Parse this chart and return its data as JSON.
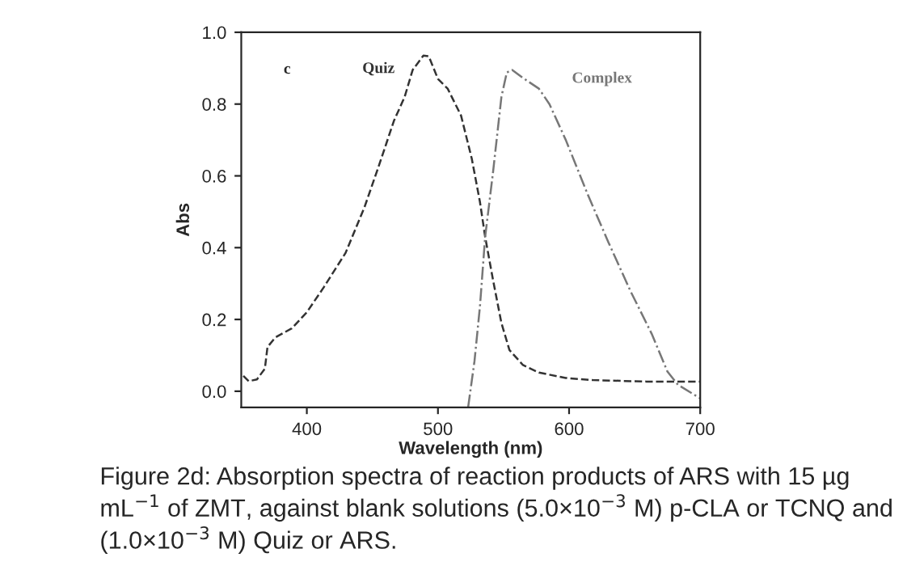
{
  "chart_data": {
    "type": "line",
    "xlabel": "Wavelength (nm)",
    "ylabel": "Abs",
    "xlim": [
      350,
      700
    ],
    "ylim": [
      -0.045,
      1.0
    ],
    "xticks": [
      400,
      500,
      600,
      700
    ],
    "yticks": [
      {
        "value": 0.0,
        "label": "0.0"
      },
      {
        "value": 0.2,
        "label": "0.2"
      },
      {
        "value": 0.4,
        "label": "0.4"
      },
      {
        "value": 0.6,
        "label": "0.6"
      },
      {
        "value": 0.8,
        "label": "0.8"
      },
      {
        "value": 1.0,
        "label": "1.0"
      }
    ],
    "grid": false,
    "legend": false,
    "marker": "none",
    "series": [
      {
        "name": "Quiz",
        "color": "#333333",
        "line_style": "dashed",
        "x": [
          351.6,
          355.7,
          362,
          368,
          370,
          376,
          388.5,
          400,
          413,
          429.5,
          444,
          454,
          466.4,
          474.6,
          480.7,
          488.9,
          493,
          500,
          507.4,
          517.6,
          525.8,
          532,
          536,
          542,
          548.4,
          554.5,
          564.8,
          577,
          597.5,
          618,
          659,
          700
        ],
        "values": [
          0.043,
          0.028,
          0.033,
          0.063,
          0.123,
          0.15,
          0.175,
          0.22,
          0.29,
          0.385,
          0.513,
          0.618,
          0.753,
          0.82,
          0.895,
          0.935,
          0.933,
          0.87,
          0.843,
          0.768,
          0.648,
          0.528,
          0.43,
          0.31,
          0.19,
          0.115,
          0.073,
          0.052,
          0.037,
          0.031,
          0.027,
          0.027
        ]
      },
      {
        "name": "Complex",
        "color": "#777777",
        "line_style": "dashdot",
        "x": [
          523,
          527.9,
          532,
          536,
          542,
          548.4,
          552.5,
          556.6,
          564.8,
          577,
          585,
          597.5,
          614,
          630,
          646.7,
          663,
          675,
          683,
          700
        ],
        "values": [
          -0.045,
          0.085,
          0.235,
          0.43,
          0.61,
          0.82,
          0.888,
          0.895,
          0.873,
          0.843,
          0.8,
          0.7,
          0.55,
          0.415,
          0.28,
          0.16,
          0.055,
          0.018,
          -0.02
        ]
      }
    ],
    "annotations": [
      "c",
      "Figure 2d: Absorption spectra of reaction products of ARS with 15 µg mL$^{−1}$ of ZMT, against blank solutions (5.0×10$^{−3}$ M) p-CLA or TCNQ and (1.0×10$^{−3}$ M) Quiz or ARS."
    ]
  }
}
